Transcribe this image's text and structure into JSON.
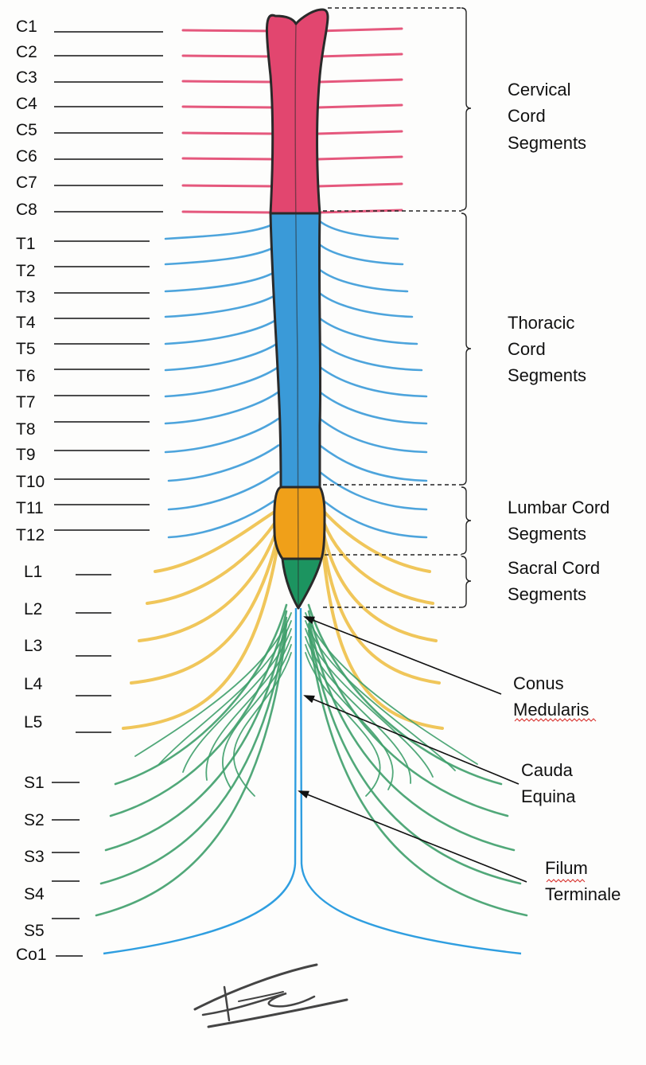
{
  "colors": {
    "cervical": "#e2466f",
    "thoracic": "#3a9ad8",
    "lumbar": "#f0a019",
    "sacral": "#1c9460",
    "lumbar_roots": "#eec048",
    "sacral_roots": "#3e9f6a",
    "filum": "#2f9ee0",
    "outline": "#2a2a2a"
  },
  "levels": {
    "cervical": [
      "C1",
      "C2",
      "C3",
      "C4",
      "C5",
      "C6",
      "C7",
      "C8"
    ],
    "thoracic": [
      "T1",
      "T2",
      "T3",
      "T4",
      "T5",
      "T6",
      "T7",
      "T8",
      "T9",
      "T10",
      "T11",
      "T12"
    ],
    "lumbar": [
      "L1",
      "L2",
      "L3",
      "L4",
      "L5"
    ],
    "sacral": [
      "S1",
      "S2",
      "S3",
      "S4",
      "S5"
    ],
    "coccygeal": [
      "Co1"
    ]
  },
  "groups": {
    "cervical": [
      "Cervical",
      "Cord",
      "Segments"
    ],
    "thoracic": [
      "Thoracic",
      "Cord",
      "Segments"
    ],
    "lumbar": [
      "Lumbar Cord",
      "Segments"
    ],
    "sacral": [
      "Sacral Cord",
      "Segments"
    ]
  },
  "annotations": {
    "conus": [
      "Conus",
      "Medularis"
    ],
    "cauda": [
      "Cauda",
      "Equina"
    ],
    "filum": [
      "Filum",
      "Terminale"
    ]
  },
  "signature_icon": "signature-scribble"
}
